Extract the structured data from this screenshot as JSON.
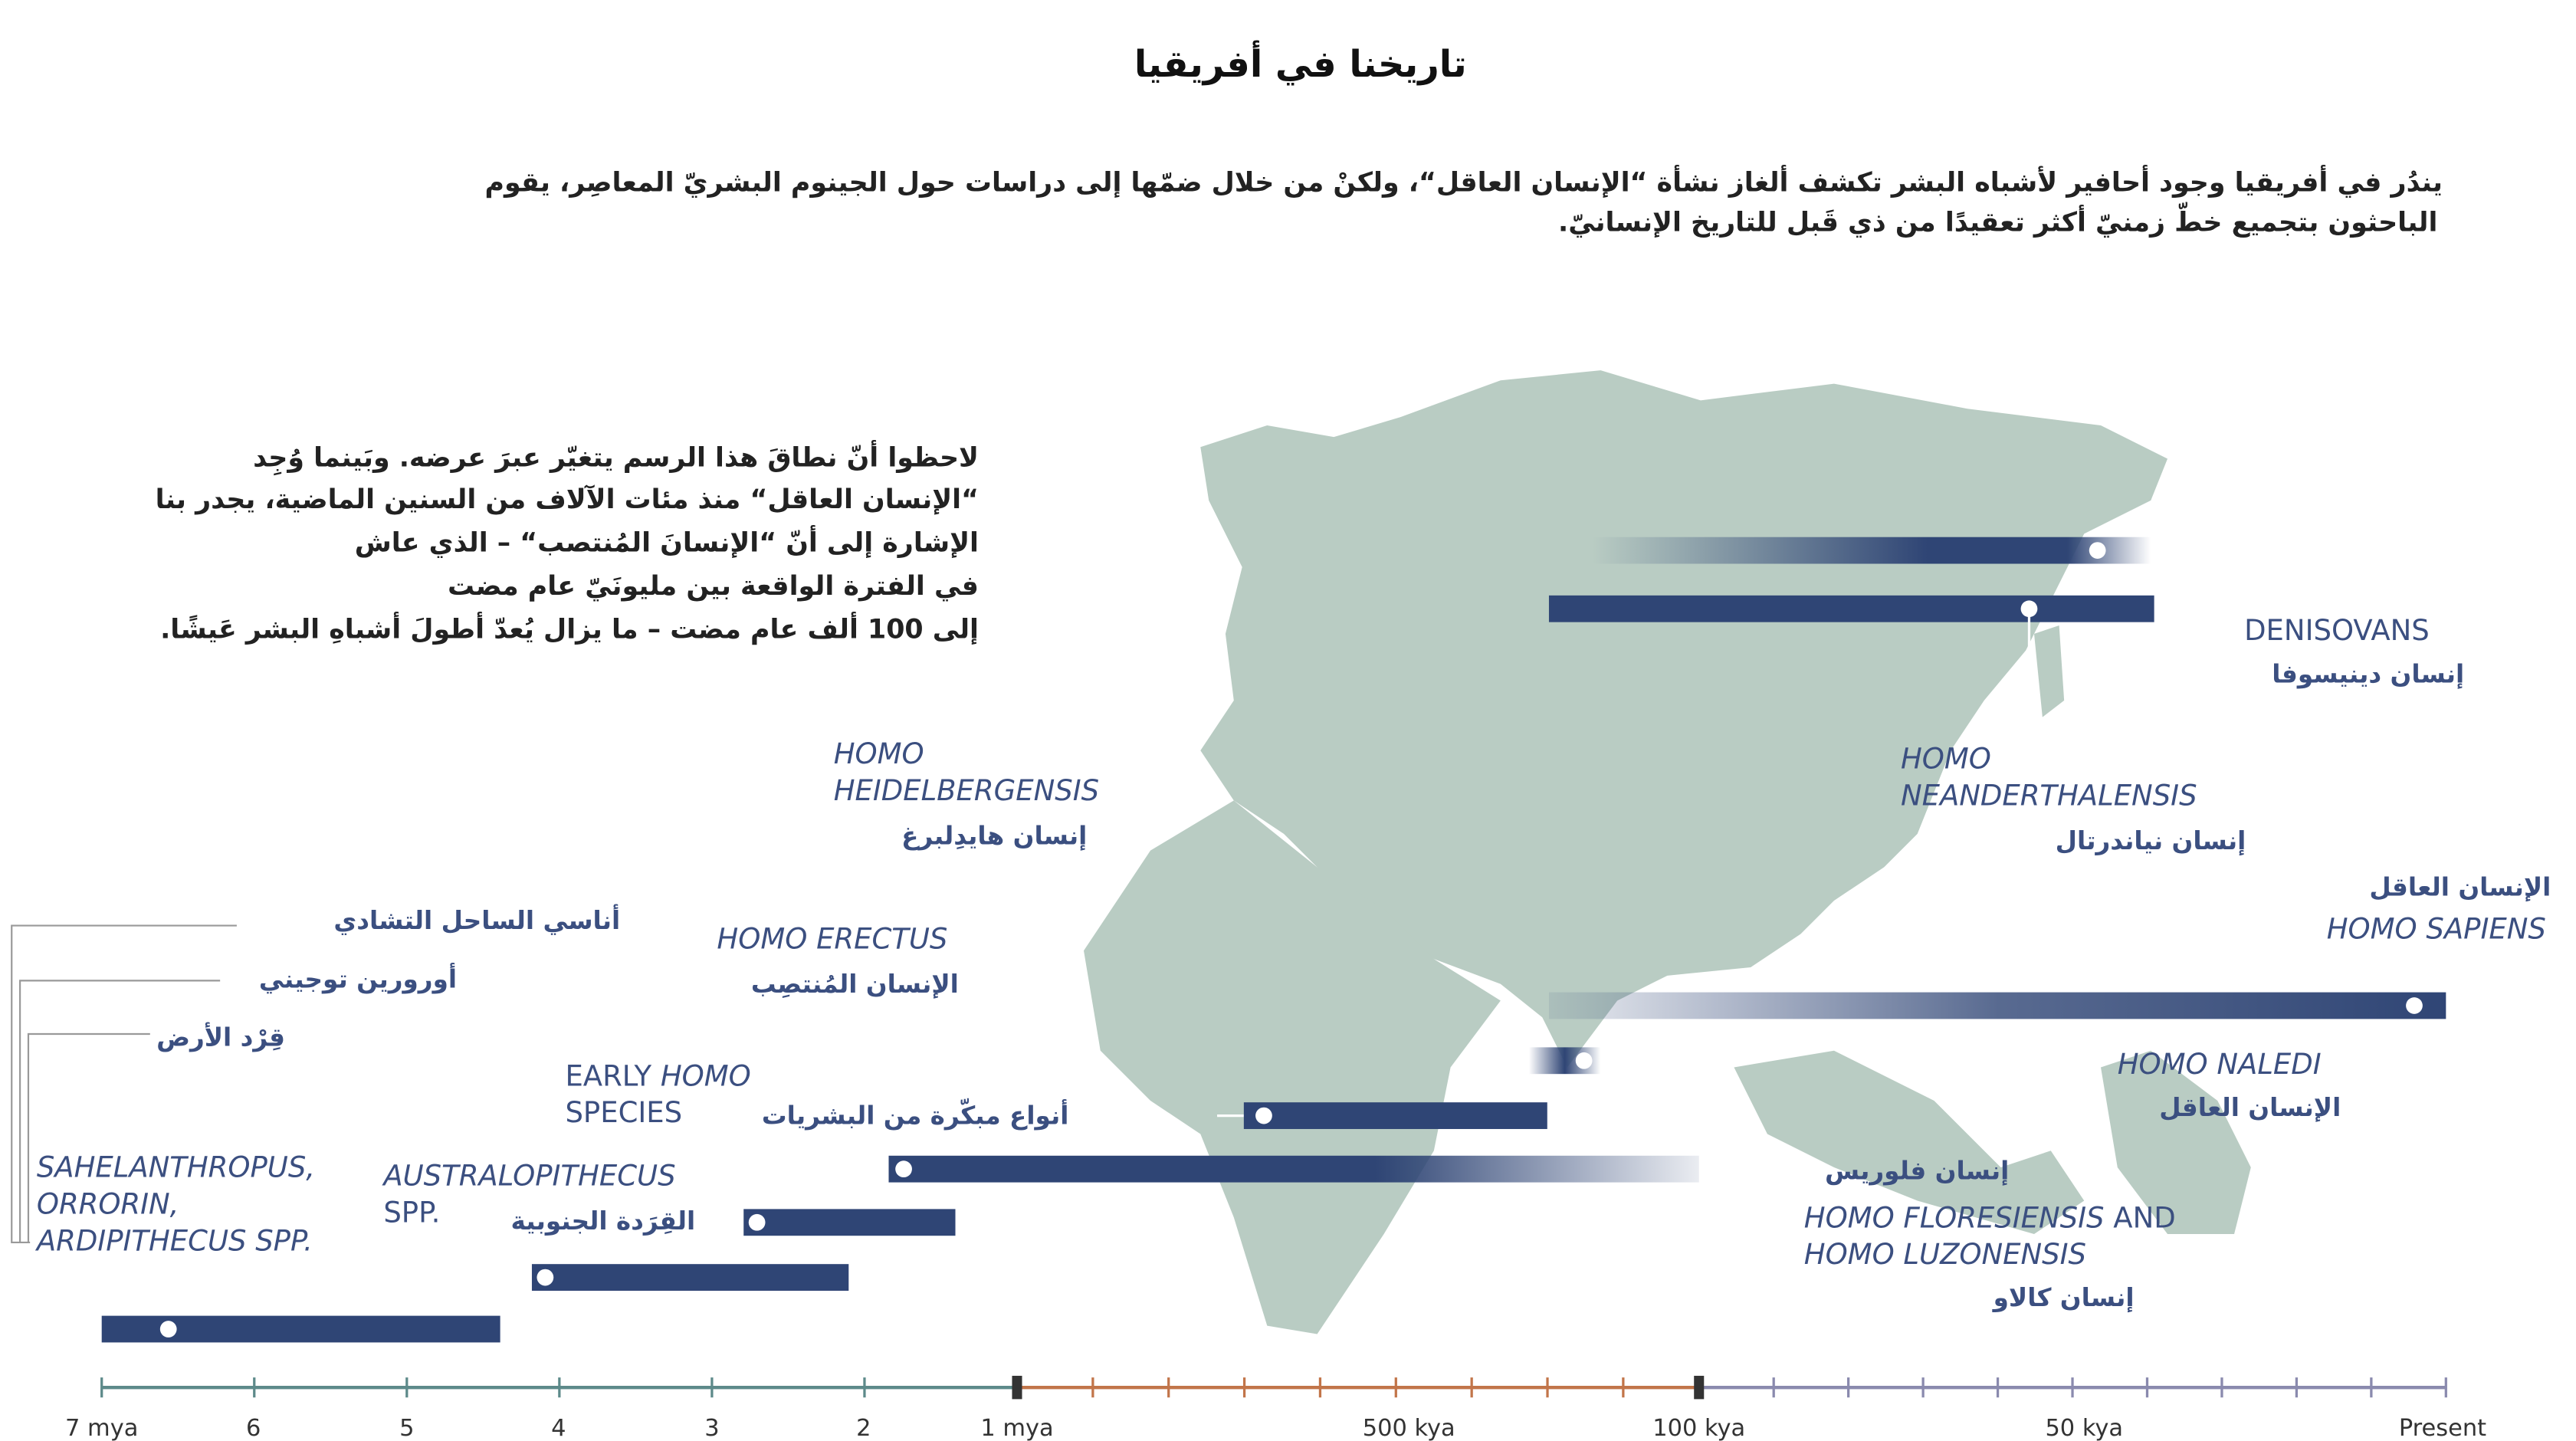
{
  "header": {
    "title": "تاريخنا في أفريقيا",
    "intro": [
      "يندُر في أفريقيا وجود أحافير لأشباه البشر تكشف ألغاز نشأة “الإنسان العاقل“، ولكنْ من خلال ضمّها إلى دراسات حول الجينوم البشريّ المعاصِر، يقوم",
      "الباحثون بتجميع خطّ زمنيّ أكثر تعقيدًا من ذي قَبل للتاريخ الإنسانيّ."
    ]
  },
  "note": [
    "لاحظوا أنّ نطاقَ هذا الرسم يتغيّر عبرَ عرضه. وبَينما وُجِد",
    "“الإنسان العاقل“ منذ مئات الآلاف من السنين الماضية، يجدر بنا",
    "الإشارة إلى أنّ “الإنسانَ المُنتصب“ – الذي عاش",
    "في الفترة الواقعة بين مليونَيّ عام مضت",
    "إلى 100 ألف عام مضت – ما يزال يُعدّ أطولَ أشباهِ البشر عَيشًا."
  ],
  "species": {
    "denisovans": {
      "en": "DENISOVANS",
      "ar": "إنسان دينيسوفا"
    },
    "neanderthalensis": {
      "en": [
        "HOMO",
        "NEANDERTHALENSIS"
      ],
      "ar": "إنسان نياندرتال"
    },
    "sapiens": {
      "ar": "الإنسان العاقل",
      "en": "HOMO SAPIENS"
    },
    "naledi": {
      "en": "HOMO NALEDI",
      "ar": "الإنسان العاقل"
    },
    "floresiensis": {
      "ar": "إنسان فلوريس",
      "en": [
        "HOMO FLORESIENSIS",
        "AND",
        "HOMO LUZONENSIS"
      ],
      "ar2": "إنسان كالاو"
    },
    "heidelbergensis": {
      "en": [
        "HOMO",
        "HEIDELBERGENSIS"
      ],
      "ar": "إنسان هايدِلبرغ"
    },
    "erectus": {
      "en": "HOMO ERECTUS",
      "ar": "الإنسان المُنتصِب"
    },
    "early": {
      "en": [
        "EARLY",
        "HOMO",
        "SPECIES"
      ],
      "ar": "أنواع مبكّرة من البشريات"
    },
    "australopithecus": {
      "en": [
        "AUSTRALOPITHECUS",
        "SPP."
      ],
      "ar": "القِرَدة الجنوبية"
    },
    "earliest": {
      "ar": [
        "أناسي الساحل التشادي",
        "أورورين توجيني",
        "قِرْد الأرض"
      ],
      "en": [
        "SAHELANTHROPUS,",
        "ORRORIN,",
        "ARDIPITHECUS SPP."
      ]
    }
  },
  "axis": [
    "7 mya",
    "6",
    "5",
    "4",
    "3",
    "2",
    "1 mya",
    "500 kya",
    "100 kya",
    "50 kya",
    "Present"
  ]
}
